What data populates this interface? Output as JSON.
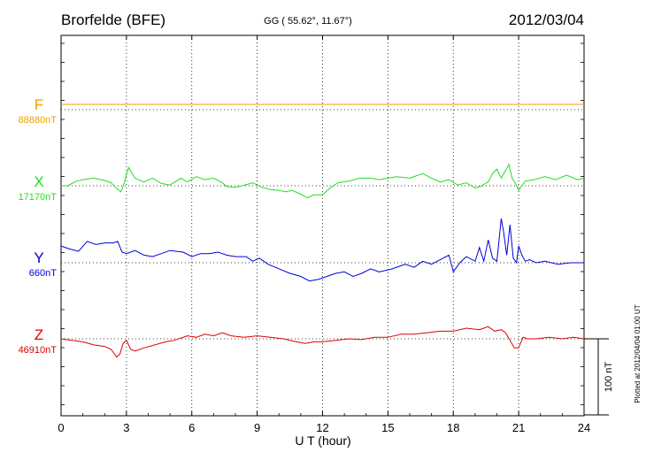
{
  "header": {
    "station": "Brorfelde (BFE)",
    "coords": "GG ( 55.62°,  11.67°)",
    "date": "2012/03/04"
  },
  "plotted_note": "Plotted at 2012/04/04 01:00 UT",
  "scale_label": "100 nT",
  "chart_data": {
    "type": "line",
    "xlabel": "U T (hour)",
    "xlim": [
      0,
      24
    ],
    "xticks": [
      0,
      3,
      6,
      9,
      12,
      15,
      18,
      21,
      24
    ],
    "ylabel": "",
    "grid": true,
    "scale_bar_nT": 100,
    "series": [
      {
        "name": "F",
        "baseline_label": "88880nT",
        "color": "#e8a200",
        "x": [
          0,
          24
        ],
        "y": [
          7,
          7
        ]
      },
      {
        "name": "X",
        "baseline_label": "17170nT",
        "color": "#22dd22",
        "x": [
          0,
          0.3,
          0.7,
          1.0,
          1.5,
          2.0,
          2.3,
          2.6,
          2.75,
          2.9,
          3.1,
          3.4,
          3.8,
          4.2,
          4.6,
          5.0,
          5.5,
          5.8,
          6.2,
          6.6,
          7.0,
          7.4,
          7.6,
          8.0,
          8.3,
          8.8,
          9.2,
          9.6,
          10.0,
          10.3,
          10.6,
          11.0,
          11.3,
          11.6,
          12.0,
          12.3,
          12.7,
          13.2,
          13.7,
          14.2,
          14.6,
          15.0,
          15.4,
          16.0,
          16.6,
          17.0,
          17.4,
          17.8,
          18.2,
          18.6,
          19.0,
          19.3,
          19.6,
          19.8,
          20.0,
          20.2,
          20.4,
          20.55,
          20.7,
          20.85,
          21.0,
          21.3,
          21.7,
          22.2,
          22.7,
          23.2,
          23.7,
          24.0
        ],
        "y": [
          0,
          0,
          6,
          8,
          10,
          7,
          4,
          -5,
          -8,
          4,
          24,
          10,
          5,
          10,
          3,
          1,
          10,
          5,
          12,
          8,
          10,
          4,
          -1,
          -2,
          0,
          4,
          -2,
          -5,
          -6,
          -8,
          -6,
          -11,
          -16,
          -12,
          -12,
          -4,
          4,
          6,
          10,
          10,
          8,
          10,
          12,
          10,
          16,
          10,
          5,
          8,
          1,
          4,
          -3,
          0,
          5,
          16,
          22,
          10,
          20,
          28,
          10,
          3,
          -6,
          6,
          8,
          12,
          8,
          14,
          8,
          10
        ]
      },
      {
        "name": "Y",
        "baseline_label": "660nT",
        "color": "#0000dd",
        "x": [
          0,
          0.4,
          0.8,
          1.2,
          1.6,
          2.0,
          2.4,
          2.6,
          2.8,
          3.0,
          3.4,
          3.8,
          4.2,
          4.6,
          5.0,
          5.6,
          6.0,
          6.4,
          6.8,
          7.2,
          7.6,
          8.0,
          8.5,
          8.8,
          9.1,
          9.5,
          10.0,
          10.5,
          11.0,
          11.4,
          11.8,
          12.2,
          12.6,
          13.0,
          13.4,
          13.8,
          14.2,
          14.6,
          15.2,
          15.8,
          16.2,
          16.6,
          17.0,
          17.4,
          17.8,
          18.0,
          18.3,
          18.6,
          19.0,
          19.2,
          19.4,
          19.6,
          19.8,
          20.0,
          20.2,
          20.3,
          20.45,
          20.6,
          20.75,
          20.9,
          21.0,
          21.15,
          21.3,
          21.5,
          21.8,
          22.2,
          22.8,
          23.4,
          24.0
        ],
        "y": [
          22,
          18,
          15,
          28,
          24,
          26,
          26,
          28,
          14,
          12,
          16,
          10,
          8,
          12,
          16,
          14,
          8,
          12,
          12,
          14,
          10,
          8,
          8,
          2,
          6,
          -2,
          -8,
          -14,
          -18,
          -24,
          -22,
          -18,
          -14,
          -12,
          -18,
          -14,
          -8,
          -12,
          -8,
          -2,
          -6,
          2,
          -2,
          4,
          10,
          -12,
          0,
          8,
          2,
          20,
          2,
          30,
          6,
          2,
          58,
          42,
          10,
          50,
          6,
          0,
          22,
          10,
          2,
          4,
          0,
          2,
          -2,
          0,
          0
        ]
      },
      {
        "name": "Z",
        "baseline_label": "46910nT",
        "color": "#dd0000",
        "x": [
          0,
          0.5,
          1.0,
          1.5,
          2.0,
          2.3,
          2.55,
          2.7,
          2.85,
          3.0,
          3.2,
          3.4,
          3.8,
          4.3,
          4.8,
          5.2,
          5.8,
          6.2,
          6.6,
          7.0,
          7.4,
          7.8,
          8.4,
          9.0,
          9.6,
          10.2,
          10.8,
          11.2,
          11.6,
          12.0,
          12.6,
          13.2,
          13.8,
          14.4,
          15.0,
          15.6,
          16.2,
          16.8,
          17.4,
          18.0,
          18.6,
          19.2,
          19.6,
          19.9,
          20.2,
          20.4,
          20.6,
          20.8,
          21.0,
          21.2,
          21.4,
          21.8,
          22.4,
          23.0,
          23.5,
          24.0
        ],
        "y": [
          0,
          -2,
          -4,
          -8,
          -10,
          -14,
          -24,
          -20,
          -6,
          -2,
          -14,
          -16,
          -12,
          -8,
          -4,
          -2,
          4,
          2,
          6,
          4,
          8,
          4,
          2,
          4,
          2,
          0,
          -4,
          -6,
          -4,
          -4,
          -2,
          0,
          -1,
          2,
          2,
          6,
          6,
          8,
          10,
          10,
          14,
          12,
          16,
          10,
          12,
          8,
          -2,
          -12,
          -12,
          2,
          0,
          0,
          2,
          0,
          2,
          0
        ]
      }
    ]
  }
}
